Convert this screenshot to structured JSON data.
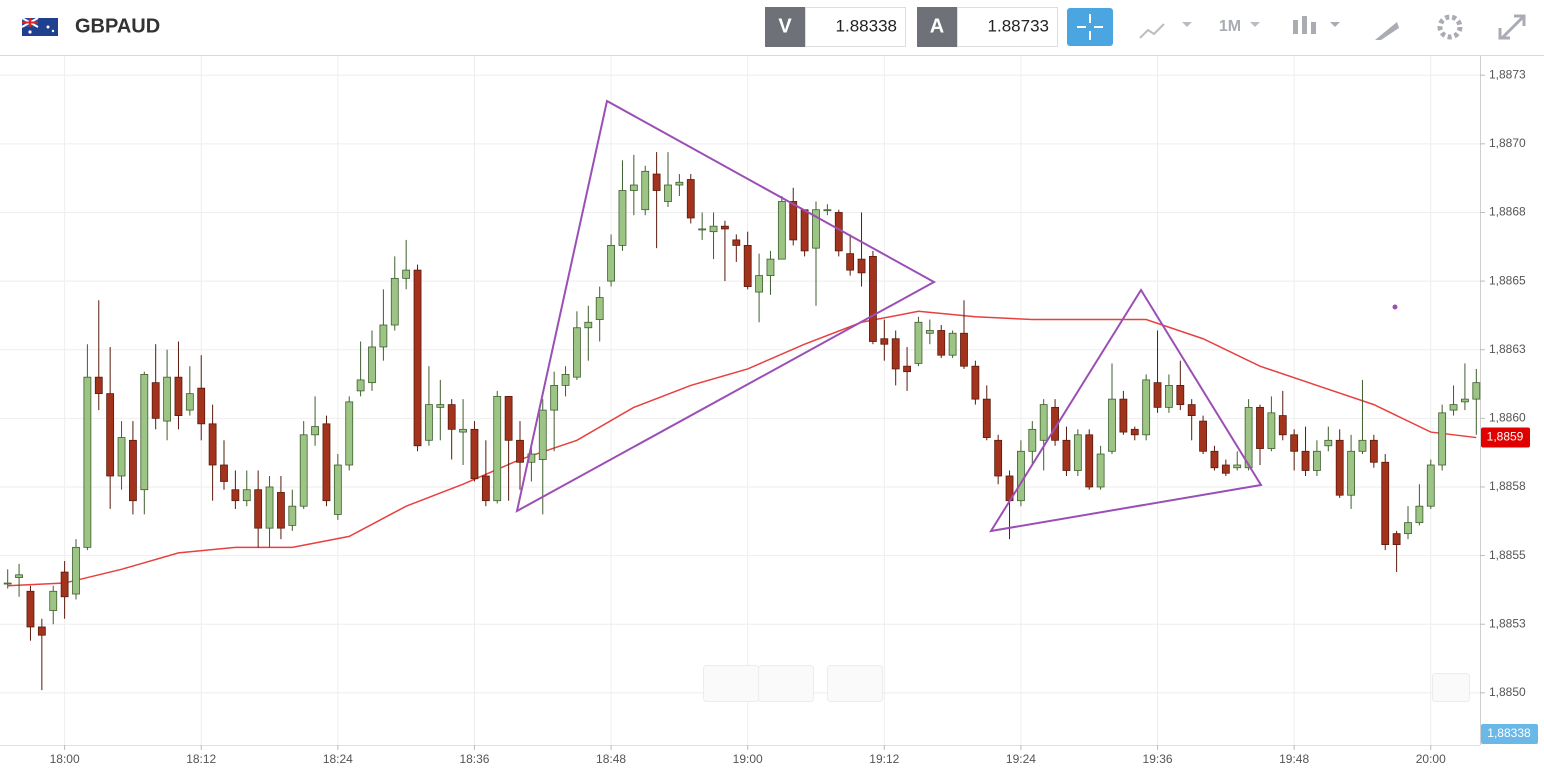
{
  "header": {
    "symbol": "GBPAUD",
    "sell": {
      "label": "V",
      "price": "1.88338"
    },
    "buy": {
      "label": "A",
      "price": "1.88733"
    },
    "timeframe": "1M"
  },
  "chart_data": {
    "type": "candlestick",
    "x": [
      "17:55",
      "17:56",
      "17:57",
      "17:58",
      "17:59",
      "18:00",
      "18:01",
      "18:02",
      "18:03",
      "18:04",
      "18:05",
      "18:06",
      "18:07",
      "18:08",
      "18:09",
      "18:10",
      "18:11",
      "18:12",
      "18:13",
      "18:14",
      "18:15",
      "18:16",
      "18:17",
      "18:18",
      "18:19",
      "18:20",
      "18:21",
      "18:22",
      "18:23",
      "18:24",
      "18:25",
      "18:26",
      "18:27",
      "18:28",
      "18:29",
      "18:30",
      "18:31",
      "18:32",
      "18:33",
      "18:34",
      "18:35",
      "18:36",
      "18:37",
      "18:38",
      "18:39",
      "18:40",
      "18:41",
      "18:42",
      "18:43",
      "18:44",
      "18:45",
      "18:46",
      "18:47",
      "18:48",
      "18:49",
      "18:50",
      "18:51",
      "18:52",
      "18:53",
      "18:54",
      "18:55",
      "18:56",
      "18:57",
      "18:58",
      "18:59",
      "19:00",
      "19:01",
      "19:02",
      "19:03",
      "19:04",
      "19:05",
      "19:06",
      "19:07",
      "19:08",
      "19:09",
      "19:10",
      "19:11",
      "19:12",
      "19:13",
      "19:14",
      "19:15",
      "19:16",
      "19:17",
      "19:18",
      "19:19",
      "19:20",
      "19:21",
      "19:22",
      "19:23",
      "19:24",
      "19:25",
      "19:26",
      "19:27",
      "19:28",
      "19:29",
      "19:30",
      "19:31",
      "19:32",
      "19:33",
      "19:34",
      "19:35",
      "19:36",
      "19:37",
      "19:38",
      "19:39",
      "19:40",
      "19:41",
      "19:42",
      "19:43",
      "19:44",
      "19:45",
      "19:46",
      "19:47",
      "19:48",
      "19:49",
      "19:50",
      "19:51",
      "19:52",
      "19:53",
      "19:54",
      "19:55",
      "19:56",
      "19:57",
      "19:58",
      "19:59",
      "20:00",
      "20:01",
      "20:02",
      "20:03",
      "20:04"
    ],
    "open": [
      1.8854,
      1.88542,
      1.88537,
      1.88524,
      1.8853,
      1.88544,
      1.88536,
      1.88553,
      1.88615,
      1.88609,
      1.88579,
      1.88592,
      1.88574,
      1.88613,
      1.88599,
      1.88615,
      1.88603,
      1.88611,
      1.88598,
      1.88583,
      1.88574,
      1.8857,
      1.88574,
      1.8856,
      1.88573,
      1.88561,
      1.88568,
      1.88594,
      1.88598,
      1.88565,
      1.88583,
      1.8861,
      1.88613,
      1.88626,
      1.88634,
      1.88651,
      1.88654,
      1.88592,
      1.88604,
      1.88605,
      1.88595,
      1.88596,
      1.88579,
      1.8857,
      1.88608,
      1.88592,
      1.88584,
      1.88585,
      1.88603,
      1.88612,
      1.88615,
      1.88633,
      1.88636,
      1.8865,
      1.88663,
      1.88683,
      1.88676,
      1.88689,
      1.88679,
      1.88685,
      1.88687,
      1.88669,
      1.88668,
      1.8867,
      1.88665,
      1.88663,
      1.88646,
      1.88652,
      1.88658,
      1.88679,
      1.88676,
      1.88662,
      1.88676,
      1.88675,
      1.8866,
      1.88658,
      1.88659,
      1.88629,
      1.88629,
      1.88619,
      1.8862,
      1.88631,
      1.88632,
      1.88623,
      1.88631,
      1.88619,
      1.88607,
      1.88592,
      1.88579,
      1.8857,
      1.88588,
      1.88592,
      1.88604,
      1.88592,
      1.88581,
      1.88594,
      1.88575,
      1.88588,
      1.88607,
      1.88596,
      1.88594,
      1.88613,
      1.88604,
      1.88612,
      1.88605,
      1.88599,
      1.88588,
      1.88583,
      1.88582,
      1.88582,
      1.88604,
      1.88589,
      1.88601,
      1.88594,
      1.88588,
      1.88581,
      1.8859,
      1.88592,
      1.88572,
      1.88588,
      1.88592,
      1.88584,
      1.88558,
      1.88558,
      1.88562,
      1.88568,
      1.88583,
      1.88603,
      1.88606,
      1.88607
    ],
    "high": [
      1.88545,
      1.88547,
      1.88539,
      1.88527,
      1.88539,
      1.88548,
      1.88556,
      1.88627,
      1.88643,
      1.88626,
      1.88599,
      1.88599,
      1.88617,
      1.88627,
      1.88625,
      1.88628,
      1.88619,
      1.88623,
      1.88605,
      1.88592,
      1.88581,
      1.88581,
      1.88581,
      1.88579,
      1.88579,
      1.88574,
      1.88599,
      1.88608,
      1.88601,
      1.88587,
      1.88608,
      1.88628,
      1.88632,
      1.88647,
      1.88659,
      1.88665,
      1.88656,
      1.88619,
      1.88614,
      1.88607,
      1.88607,
      1.88599,
      1.88592,
      1.8861,
      1.88608,
      1.88599,
      1.8859,
      1.88607,
      1.88617,
      1.88619,
      1.88639,
      1.88641,
      1.88648,
      1.88667,
      1.88694,
      1.88696,
      1.88692,
      1.88697,
      1.88697,
      1.88689,
      1.88689,
      1.88675,
      1.88675,
      1.88672,
      1.88667,
      1.88668,
      1.8866,
      1.88661,
      1.88681,
      1.88684,
      1.88676,
      1.88679,
      1.88678,
      1.88676,
      1.88667,
      1.88675,
      1.88661,
      1.88636,
      1.88632,
      1.88626,
      1.88637,
      1.88636,
      1.88634,
      1.88632,
      1.88643,
      1.88621,
      1.88612,
      1.88594,
      1.88581,
      1.88592,
      1.88599,
      1.88607,
      1.88607,
      1.88597,
      1.88596,
      1.88596,
      1.8859,
      1.8862,
      1.8861,
      1.88597,
      1.88616,
      1.88632,
      1.88616,
      1.88621,
      1.88607,
      1.88601,
      1.8859,
      1.88585,
      1.88588,
      1.88607,
      1.88605,
      1.88608,
      1.8861,
      1.88596,
      1.88597,
      1.88592,
      1.88597,
      1.88596,
      1.88594,
      1.88614,
      1.88594,
      1.88587,
      1.88559,
      1.88568,
      1.88576,
      1.88585,
      1.88605,
      1.88612,
      1.8862,
      1.88618
    ],
    "low": [
      1.88538,
      1.88535,
      1.88519,
      1.88501,
      1.88525,
      1.88527,
      1.88534,
      1.88552,
      1.88603,
      1.88567,
      1.88574,
      1.88565,
      1.88565,
      1.88596,
      1.88592,
      1.88596,
      1.88601,
      1.88592,
      1.8857,
      1.88574,
      1.88567,
      1.88568,
      1.88553,
      1.88553,
      1.88556,
      1.88559,
      1.88567,
      1.8859,
      1.88568,
      1.88563,
      1.88581,
      1.88608,
      1.8861,
      1.88621,
      1.88632,
      1.88647,
      1.88588,
      1.8859,
      1.88592,
      1.88585,
      1.88583,
      1.88577,
      1.88568,
      1.88569,
      1.8857,
      1.88574,
      1.88577,
      1.88565,
      1.88588,
      1.88608,
      1.88614,
      1.88621,
      1.88628,
      1.88648,
      1.88661,
      1.88674,
      1.88674,
      1.88662,
      1.88677,
      1.88681,
      1.88671,
      1.88665,
      1.88658,
      1.8865,
      1.88657,
      1.88647,
      1.88635,
      1.88645,
      1.88658,
      1.88663,
      1.88659,
      1.88641,
      1.88674,
      1.88659,
      1.88652,
      1.88648,
      1.88627,
      1.88621,
      1.88612,
      1.8861,
      1.88619,
      1.88627,
      1.88622,
      1.88622,
      1.88618,
      1.88605,
      1.88592,
      1.88576,
      1.88556,
      1.88568,
      1.88583,
      1.88581,
      1.8859,
      1.88579,
      1.88579,
      1.88574,
      1.88574,
      1.88587,
      1.88594,
      1.88592,
      1.88592,
      1.88602,
      1.88602,
      1.88603,
      1.88592,
      1.88587,
      1.88581,
      1.88579,
      1.88581,
      1.88581,
      1.88583,
      1.88588,
      1.88592,
      1.88581,
      1.88579,
      1.88579,
      1.88588,
      1.88571,
      1.88567,
      1.88587,
      1.88582,
      1.88552,
      1.88544,
      1.88556,
      1.88561,
      1.88567,
      1.88581,
      1.88601,
      1.88603,
      1.88594
    ],
    "close": [
      1.8854,
      1.88543,
      1.88524,
      1.88521,
      1.88537,
      1.88535,
      1.88553,
      1.88615,
      1.88609,
      1.88579,
      1.88593,
      1.8857,
      1.88616,
      1.886,
      1.88615,
      1.88601,
      1.88609,
      1.88598,
      1.88583,
      1.88577,
      1.8857,
      1.88574,
      1.8856,
      1.88575,
      1.8856,
      1.88568,
      1.88594,
      1.88597,
      1.8857,
      1.88583,
      1.88606,
      1.88614,
      1.88626,
      1.88634,
      1.88651,
      1.88654,
      1.8859,
      1.88605,
      1.88605,
      1.88596,
      1.88596,
      1.88578,
      1.8857,
      1.88608,
      1.88592,
      1.88584,
      1.88587,
      1.88603,
      1.88612,
      1.88616,
      1.88633,
      1.88635,
      1.88644,
      1.88663,
      1.88683,
      1.88685,
      1.8869,
      1.88683,
      1.88685,
      1.88686,
      1.88673,
      1.88669,
      1.8867,
      1.88669,
      1.88663,
      1.88648,
      1.88652,
      1.88658,
      1.88679,
      1.88665,
      1.88661,
      1.88676,
      1.88676,
      1.88661,
      1.88654,
      1.88653,
      1.88628,
      1.88627,
      1.88618,
      1.88617,
      1.88635,
      1.88632,
      1.88623,
      1.88631,
      1.88619,
      1.88607,
      1.88593,
      1.88579,
      1.8857,
      1.88588,
      1.88596,
      1.88605,
      1.88592,
      1.88581,
      1.88594,
      1.88575,
      1.88587,
      1.88607,
      1.88595,
      1.88594,
      1.88614,
      1.88604,
      1.88612,
      1.88605,
      1.88601,
      1.88588,
      1.88582,
      1.8858,
      1.88583,
      1.88604,
      1.88589,
      1.88602,
      1.88594,
      1.88588,
      1.88581,
      1.88588,
      1.88592,
      1.88572,
      1.88588,
      1.88592,
      1.88584,
      1.88554,
      1.88554,
      1.88562,
      1.88568,
      1.88583,
      1.88602,
      1.88605,
      1.88607,
      1.88613
    ],
    "up_color": "#9cc484",
    "down_color": "#a3331d",
    "ma": {
      "color": "#e8403f",
      "x": [
        "17:55",
        "18:00",
        "18:05",
        "18:10",
        "18:15",
        "18:20",
        "18:25",
        "18:30",
        "18:35",
        "18:40",
        "18:45",
        "18:50",
        "18:55",
        "19:00",
        "19:05",
        "19:10",
        "19:15",
        "19:20",
        "19:25",
        "19:30",
        "19:35",
        "19:40",
        "19:45",
        "19:50",
        "19:55",
        "20:00",
        "20:04"
      ],
      "values": [
        1.88539,
        1.8854,
        1.88545,
        1.88551,
        1.88553,
        1.88553,
        1.88557,
        1.88568,
        1.88576,
        1.88585,
        1.88592,
        1.88604,
        1.88612,
        1.88618,
        1.88627,
        1.88635,
        1.88639,
        1.88637,
        1.88636,
        1.88636,
        1.88636,
        1.88629,
        1.88619,
        1.88612,
        1.88605,
        1.88595,
        1.88593
      ],
      "label": "1,8859"
    },
    "bid_label": "1,88338",
    "ylim": [
      1.88481,
      1.88732
    ],
    "yticks": [
      {
        "value": 1.88725,
        "label": "1,8873"
      },
      {
        "value": 1.887,
        "label": "1,8870"
      },
      {
        "value": 1.88675,
        "label": "1,8868"
      },
      {
        "value": 1.8865,
        "label": "1,8865"
      },
      {
        "value": 1.88625,
        "label": "1,8863"
      },
      {
        "value": 1.886,
        "label": "1,8860"
      },
      {
        "value": 1.88575,
        "label": "1,8858"
      },
      {
        "value": 1.8855,
        "label": "1,8855"
      },
      {
        "value": 1.88525,
        "label": "1,8853"
      },
      {
        "value": 1.885,
        "label": "1,8850"
      }
    ],
    "xticks": [
      "18:00",
      "18:12",
      "18:24",
      "18:36",
      "18:48",
      "19:00",
      "19:12",
      "19:24",
      "19:36",
      "19:48",
      "20:00"
    ],
    "grid": true
  }
}
